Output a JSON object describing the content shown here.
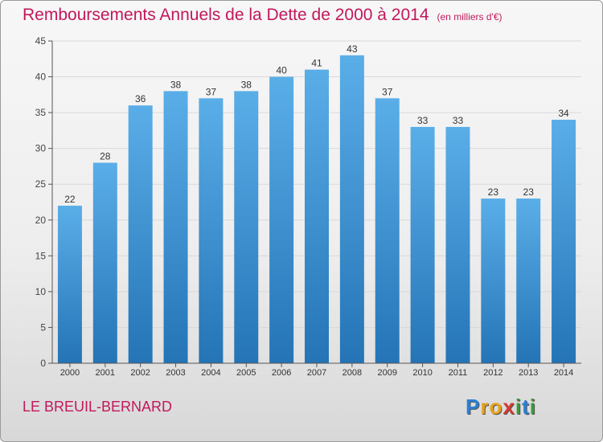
{
  "chart_data": {
    "type": "bar",
    "title": "Remboursements Annuels de la Dette de 2000 à 2014",
    "unit_label": "(en milliers d'€)",
    "xlabel": "",
    "ylabel": "",
    "categories": [
      "2000",
      "2001",
      "2002",
      "2003",
      "2004",
      "2005",
      "2006",
      "2007",
      "2008",
      "2009",
      "2010",
      "2011",
      "2012",
      "2013",
      "2014"
    ],
    "values": [
      22,
      28,
      36,
      38,
      37,
      38,
      40,
      41,
      43,
      37,
      33,
      33,
      23,
      23,
      34
    ],
    "ylim": [
      0,
      45
    ],
    "yticks": [
      0,
      5,
      10,
      15,
      20,
      25,
      30,
      35,
      40,
      45
    ],
    "grid": true,
    "bar_color_top": "#5aaee8",
    "bar_color_bottom": "#2474b6"
  },
  "footer": {
    "place": "LE BREUIL-BERNARD"
  },
  "logo": {
    "letters": [
      "P",
      "r",
      "o",
      "x",
      "i",
      "t",
      "i"
    ],
    "colors": [
      "#2a7fd4",
      "#e8a21a",
      "#e8a21a",
      "#d63a2f",
      "#3a9a3a",
      "#2a7fd4",
      "#3a9a3a"
    ]
  }
}
